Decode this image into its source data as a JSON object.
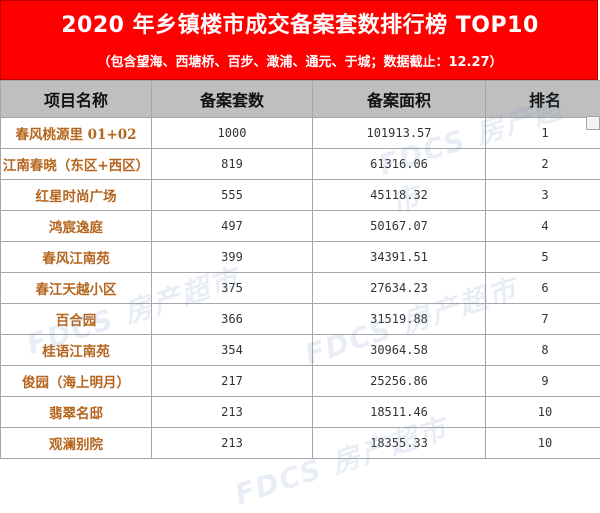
{
  "header": {
    "title": "2020 年乡镇楼市成交备案套数排行榜 TOP10",
    "subtitle": "（包含望海、西塘桥、百步、澉浦、通元、于城；数据截止：12.27）"
  },
  "table": {
    "columns": [
      "项目名称",
      "备案套数",
      "备案面积",
      "排名"
    ],
    "rows": [
      {
        "name": "春风桃源里 01+02",
        "units": "1000",
        "area": "101913.57",
        "rank": "1"
      },
      {
        "name": "江南春晓（东区+西区）",
        "units": "819",
        "area": "61316.06",
        "rank": "2"
      },
      {
        "name": "红星时尚广场",
        "units": "555",
        "area": "45118.32",
        "rank": "3"
      },
      {
        "name": "鸿宸逸庭",
        "units": "497",
        "area": "50167.07",
        "rank": "4"
      },
      {
        "name": "春风江南苑",
        "units": "399",
        "area": "34391.51",
        "rank": "5"
      },
      {
        "name": "春江天越小区",
        "units": "375",
        "area": "27634.23",
        "rank": "6"
      },
      {
        "name": "百合园",
        "units": "366",
        "area": "31519.88",
        "rank": "7"
      },
      {
        "name": "桂语江南苑",
        "units": "354",
        "area": "30964.58",
        "rank": "8"
      },
      {
        "name": "俊园（海上明月）",
        "units": "217",
        "area": "25256.86",
        "rank": "9"
      },
      {
        "name": "翡翠名邸",
        "units": "213",
        "area": "18511.46",
        "rank": "10"
      },
      {
        "name": "观澜别院",
        "units": "213",
        "area": "18355.33",
        "rank": "10"
      }
    ]
  },
  "watermark": {
    "text": "FDCS 房产超市"
  },
  "colors": {
    "banner": "#ff0000",
    "header_row": "#bfbfbf",
    "project_name": "#b5651d"
  }
}
